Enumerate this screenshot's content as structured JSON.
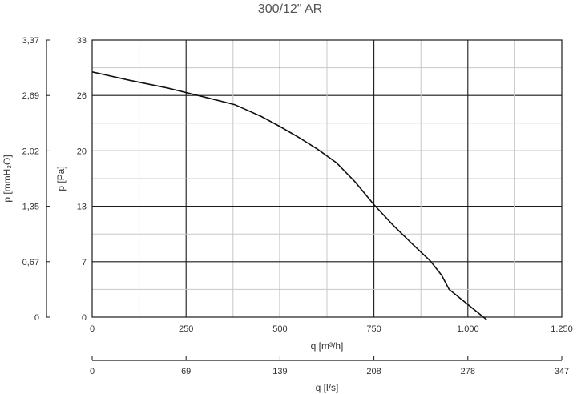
{
  "chart_data": {
    "type": "line",
    "title": "300/12\" AR",
    "xlabel": "q [m³/h]",
    "xlabel2": "q [l/s]",
    "ylabel": "p [Pa]",
    "ylabel2": "p [mmH₂O]",
    "xlim": [
      0,
      1250
    ],
    "ylim": [
      0,
      33
    ],
    "grid": true,
    "x_ticks": [
      "0",
      "250",
      "500",
      "750",
      "1.000",
      "1.250"
    ],
    "x2_ticks": [
      "0",
      "69",
      "139",
      "208",
      "278",
      "347"
    ],
    "y_ticks": [
      "0",
      "7",
      "13",
      "20",
      "26",
      "33"
    ],
    "y2_ticks": [
      "0",
      "0,67",
      "1,35",
      "2,02",
      "2,69",
      "3,37"
    ],
    "series": [
      {
        "x": [
          0,
          100,
          200,
          300,
          380,
          450,
          500,
          550,
          600,
          650,
          700,
          750,
          800,
          850,
          900,
          930,
          950,
          1000,
          1050
        ],
        "values": [
          29.2,
          28.2,
          27.3,
          26.2,
          25.3,
          23.9,
          22.7,
          21.4,
          20.0,
          18.4,
          16.1,
          13.4,
          11.0,
          8.8,
          6.7,
          5.0,
          3.3,
          1.5,
          -0.3
        ]
      }
    ]
  }
}
